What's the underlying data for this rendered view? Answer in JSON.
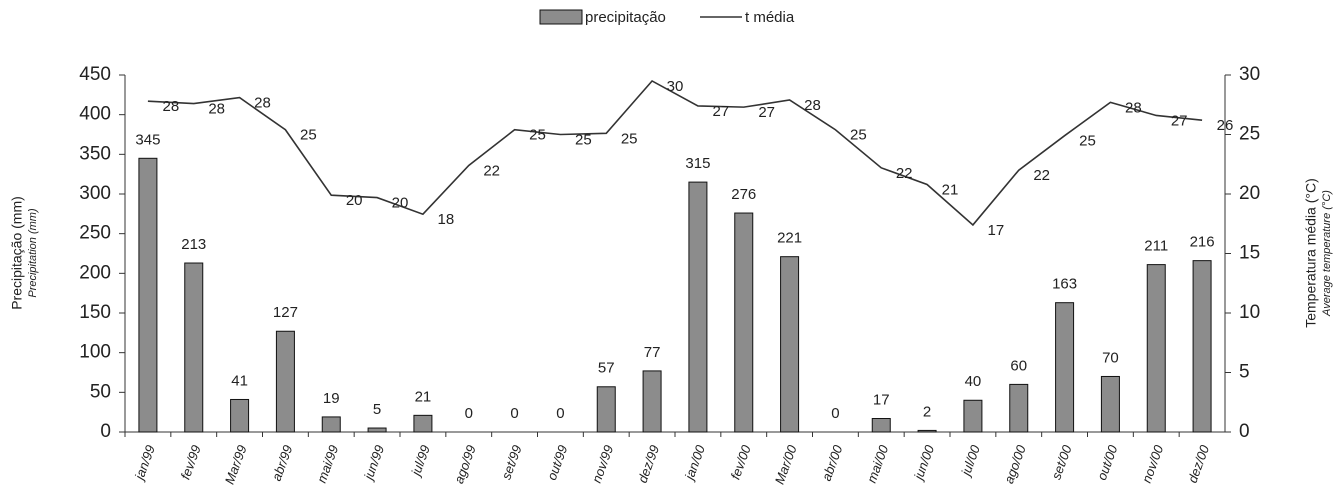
{
  "chart_data": {
    "type": "bar-line",
    "categories": [
      "jan/99",
      "fev/99",
      "Mar/99",
      "abr/99",
      "mai/99",
      "jun/99",
      "jul/99",
      "ago/99",
      "set/99",
      "out/99",
      "nov/99",
      "dez/99",
      "jan/00",
      "fev/00",
      "Mar/00",
      "abr/00",
      "mai/00",
      "jun/00",
      "jul/00",
      "ago/00",
      "set/00",
      "out/00",
      "nov/00",
      "dez/00"
    ],
    "series": [
      {
        "name": "precipitação",
        "color": "#8c8c8c",
        "values": [
          345,
          213,
          41,
          127,
          19,
          5,
          21,
          0,
          0,
          0,
          57,
          77,
          315,
          276,
          221,
          0,
          17,
          2,
          40,
          60,
          163,
          70,
          211,
          216
        ]
      },
      {
        "name": "t média",
        "color": "#333333",
        "axis": "y2",
        "values": [
          27.8,
          27.6,
          28.1,
          25.4,
          19.9,
          19.7,
          18.3,
          22.4,
          25.4,
          25.0,
          25.1,
          29.5,
          27.4,
          27.3,
          27.9,
          25.4,
          22.2,
          20.8,
          17.4,
          22.0,
          24.9,
          27.7,
          26.6,
          26.2
        ],
        "value_labels": [
          "28",
          "28",
          "28",
          "25",
          "20",
          "20",
          "18",
          "22",
          "25",
          "25",
          "25",
          "30",
          "27",
          "27",
          "28",
          "25",
          "22",
          "21",
          "17",
          "22",
          "25",
          "28",
          "27",
          "26"
        ]
      }
    ],
    "ylabel": "Precipitação (mm)",
    "ylabel_sub": "Precipitation (mm)",
    "y2label": "Temperatura média (°C)",
    "y2label_sub": "Average temperature (°C)",
    "ylim": [
      0,
      450
    ],
    "yticks": [
      0,
      50,
      100,
      150,
      200,
      250,
      300,
      350,
      400,
      450
    ],
    "y2lim": [
      0,
      30
    ],
    "y2ticks": [
      0,
      5,
      10,
      15,
      20,
      25,
      30
    ],
    "legend": "top"
  }
}
